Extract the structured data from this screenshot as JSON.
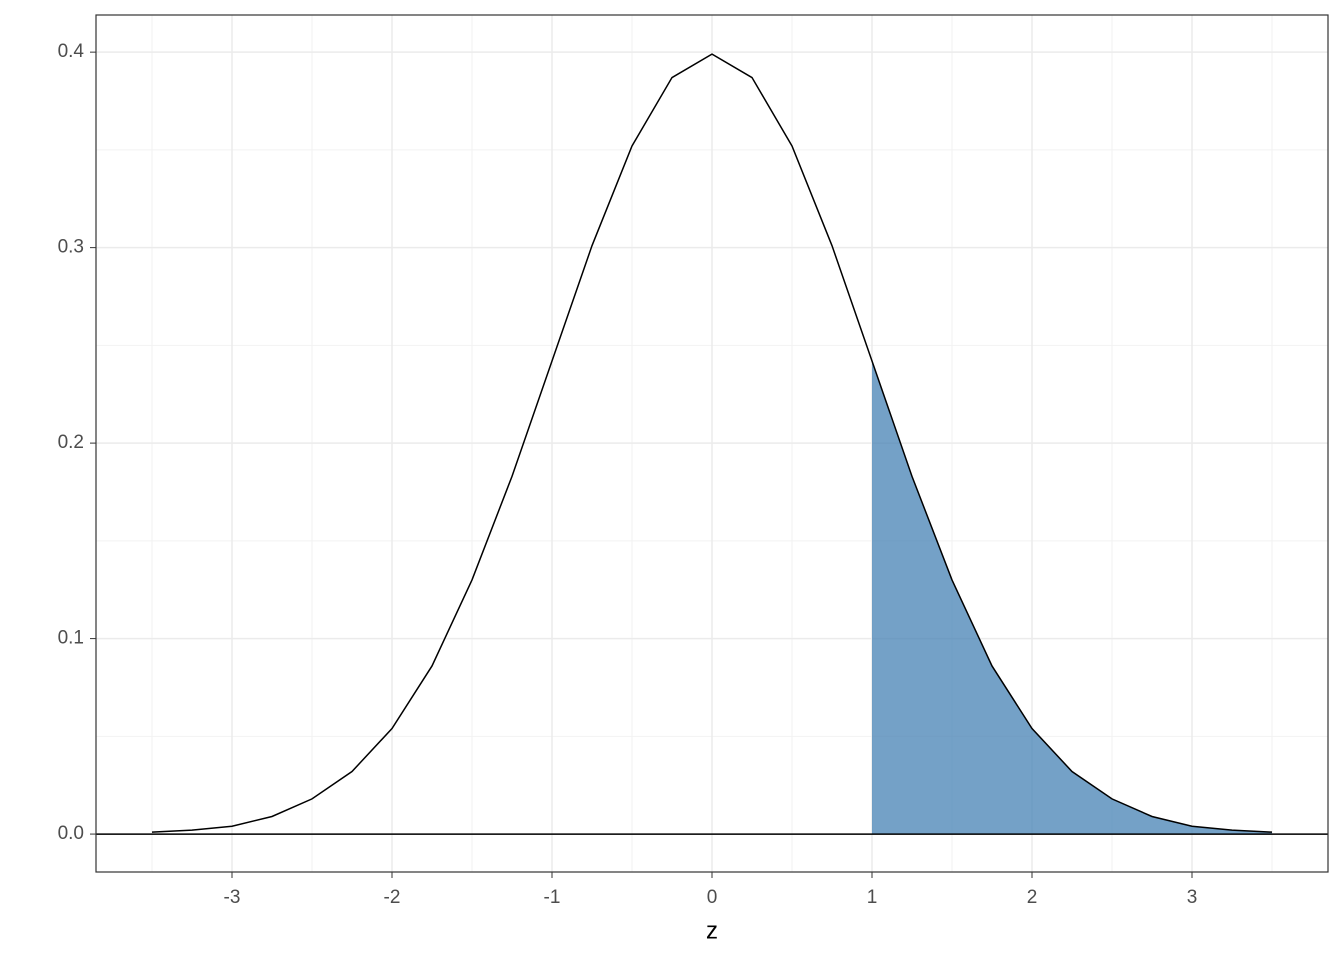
{
  "chart_data": {
    "type": "line",
    "x_label": "z",
    "xlim": [
      -3.85,
      3.85
    ],
    "ylim": [
      -0.0194,
      0.419
    ],
    "xticks": [
      -3,
      -2,
      -1,
      0,
      1,
      2,
      3
    ],
    "yticks": [
      {
        "value": 0,
        "label": "0.0"
      },
      0.1,
      0.2,
      0.3,
      0.4
    ],
    "x_minor_ticks": [
      -3.5,
      -2.5,
      -1.5,
      -0.5,
      0.5,
      1.5,
      2.5,
      3.5
    ],
    "y_minor_ticks": [
      0.05,
      0.15,
      0.25,
      0.35
    ],
    "grid": true,
    "hline": 0,
    "series": [
      {
        "type": "area",
        "color": "#4682b4",
        "opacity": 0.75,
        "x": [
          1,
          1.25,
          1.5,
          1.75,
          2,
          2.25,
          2.5,
          2.75,
          3,
          3.25,
          3.5
        ],
        "values": [
          0.242,
          0.183,
          0.13,
          0.086,
          0.054,
          0.032,
          0.018,
          0.009,
          0.004,
          0.002,
          0.001
        ]
      },
      {
        "type": "line",
        "color": "#000000",
        "x": [
          -3.5,
          -3.25,
          -3,
          -2.75,
          -2.5,
          -2.25,
          -2,
          -1.75,
          -1.5,
          -1.25,
          -1,
          -0.75,
          -0.5,
          -0.25,
          0,
          0.25,
          0.5,
          0.75,
          1,
          1.25,
          1.5,
          1.75,
          2,
          2.25,
          2.5,
          2.75,
          3,
          3.25,
          3.5
        ],
        "values": [
          0.001,
          0.002,
          0.004,
          0.009,
          0.018,
          0.032,
          0.054,
          0.086,
          0.13,
          0.183,
          0.242,
          0.301,
          0.352,
          0.387,
          0.399,
          0.387,
          0.352,
          0.301,
          0.242,
          0.183,
          0.13,
          0.086,
          0.054,
          0.032,
          0.018,
          0.009,
          0.004,
          0.002,
          0.001
        ]
      }
    ]
  }
}
